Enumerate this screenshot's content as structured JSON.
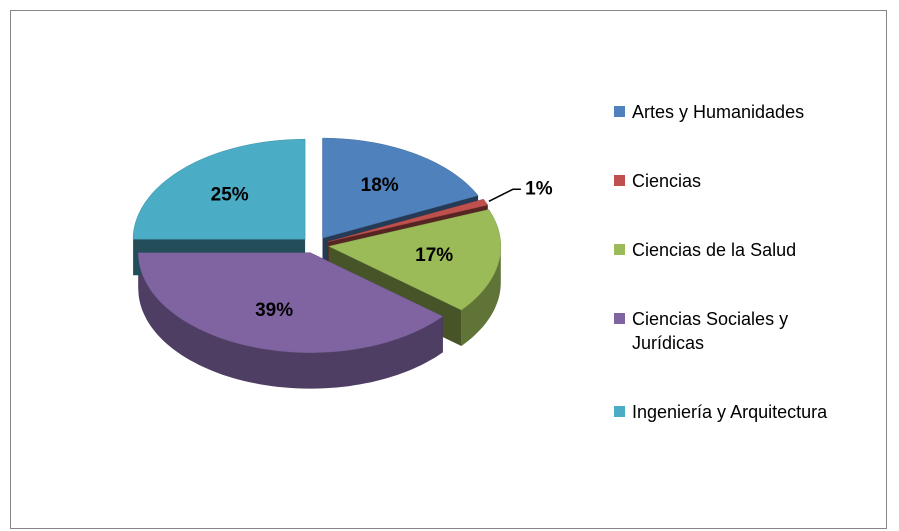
{
  "chart_data": {
    "type": "pie3d",
    "categories": [
      "Artes y Humanidades",
      "Ciencias",
      "Ciencias de la Salud",
      "Ciencias Sociales y Jurídicas",
      "Ingeniería y Arquitectura"
    ],
    "values": [
      18,
      1,
      17,
      39,
      25
    ],
    "value_labels": [
      "18%",
      "1%",
      "17%",
      "39%",
      "25%"
    ],
    "colors": [
      "#4f81bd",
      "#c0504d",
      "#9bbb59",
      "#8064a2",
      "#4bacc6"
    ],
    "legend": "right"
  }
}
